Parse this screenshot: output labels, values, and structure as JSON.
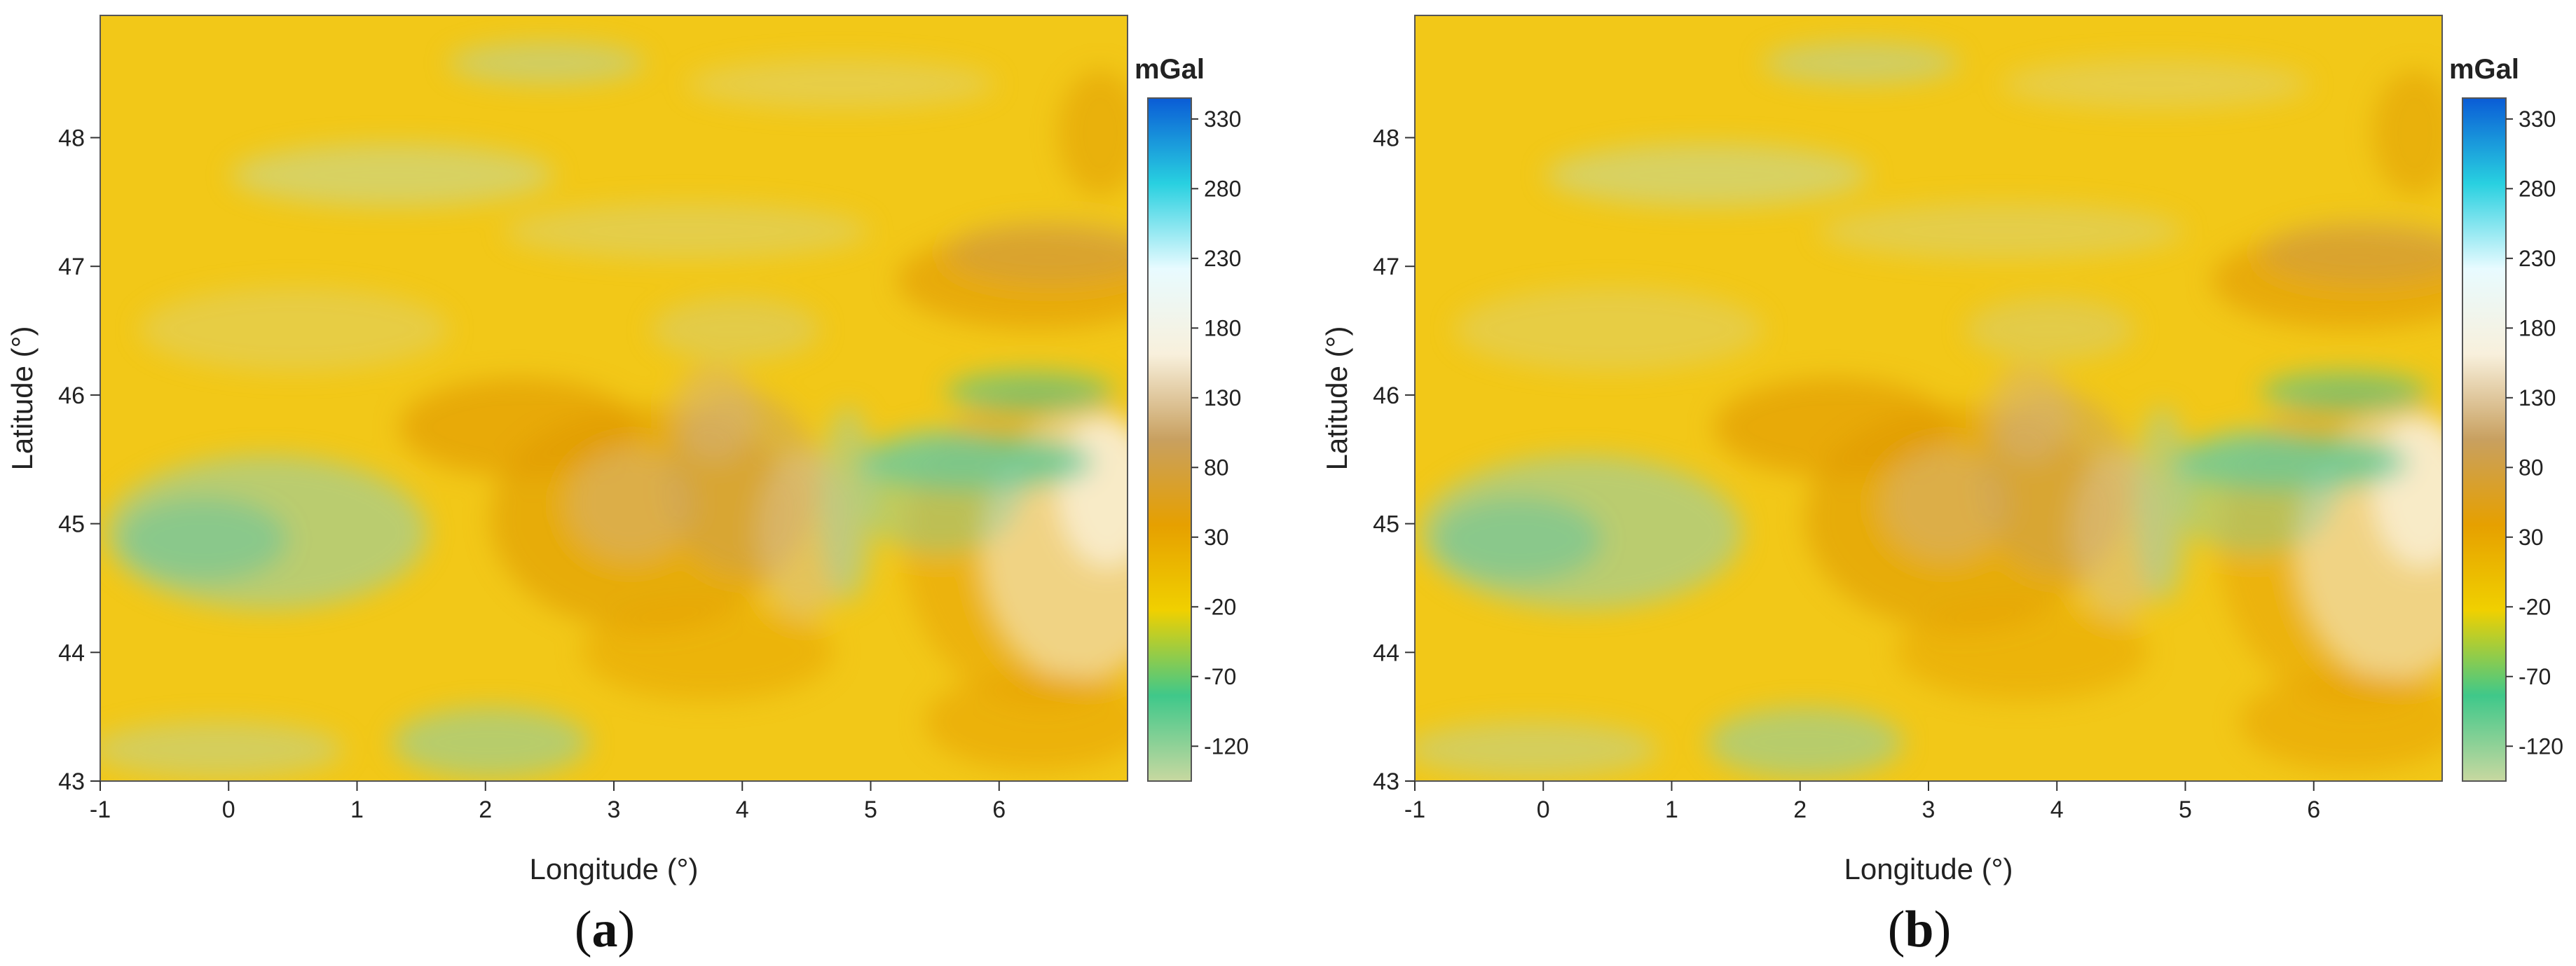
{
  "figure": {
    "panels": [
      {
        "label_open": "(",
        "label_letter": "a",
        "label_close": ")"
      },
      {
        "label_open": "(",
        "label_letter": "b",
        "label_close": ")"
      }
    ]
  },
  "map": {
    "x_axis": {
      "label": "Longitude (°)",
      "ticks": [
        -1,
        0,
        1,
        2,
        3,
        4,
        5,
        6
      ],
      "range": [
        -1,
        7
      ]
    },
    "y_axis": {
      "label": "Latitude (°)",
      "ticks": [
        43,
        44,
        45,
        46,
        47,
        48
      ],
      "range": [
        43,
        48.95
      ]
    },
    "colorbar": {
      "unit": "mGal",
      "ticks": [
        -120,
        -70,
        -20,
        30,
        80,
        130,
        180,
        230,
        280,
        330
      ],
      "range": [
        -145,
        345
      ],
      "colors": [
        "#c8d8a0",
        "#3fc88a",
        "#f0d000",
        "#e6a000",
        "#c8a060",
        "#f8f0dc",
        "#e8fbff",
        "#28d0e0",
        "#0a5cd6"
      ]
    },
    "background_color": "#f2c818"
  }
}
